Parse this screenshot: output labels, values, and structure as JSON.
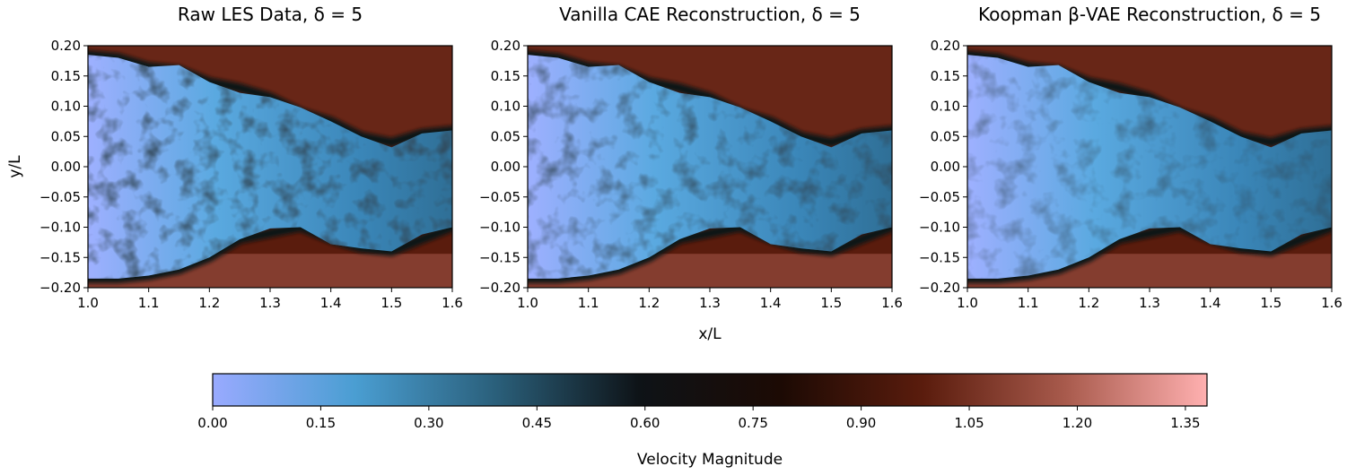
{
  "figure": {
    "xlabel": "x/L",
    "ylabel": "y/L",
    "colorbar_label": "Velocity Magnitude"
  },
  "colors": {
    "colormap": [
      "#99aaff",
      "#4a9ed2",
      "#2a5f7a",
      "#0e1317",
      "#1c0a04",
      "#5a1c0d",
      "#a85a4c",
      "#ffb0b0"
    ]
  },
  "chart_data": [
    {
      "type": "heatmap",
      "title": "Raw LES Data, δ = 5",
      "xlim": [
        1.0,
        1.6
      ],
      "ylim": [
        -0.2,
        0.2
      ],
      "xticks": [
        "1.0",
        "1.1",
        "1.2",
        "1.3",
        "1.4",
        "1.5",
        "1.6"
      ],
      "yticks": [
        "−0.20",
        "−0.15",
        "−0.10",
        "−0.05",
        "0.00",
        "0.05",
        "0.10",
        "0.15",
        "0.20"
      ],
      "field": "velocity magnitude (turbulent jet, low-velocity core ~0.1–0.5, surrounding flow ~0.9–1.2)"
    },
    {
      "type": "heatmap",
      "title": "Vanilla CAE Reconstruction, δ = 5",
      "xlim": [
        1.0,
        1.6
      ],
      "ylim": [
        -0.2,
        0.2
      ],
      "xticks": [
        "1.0",
        "1.1",
        "1.2",
        "1.3",
        "1.4",
        "1.5",
        "1.6"
      ],
      "yticks": [
        "−0.20",
        "−0.15",
        "−0.10",
        "−0.05",
        "0.00",
        "0.05",
        "0.10",
        "0.15",
        "0.20"
      ],
      "field": "velocity magnitude (smoothed reconstruction)"
    },
    {
      "type": "heatmap",
      "title": "Koopman β-VAE Reconstruction, δ = 5",
      "xlim": [
        1.0,
        1.6
      ],
      "ylim": [
        -0.2,
        0.2
      ],
      "xticks": [
        "1.0",
        "1.1",
        "1.2",
        "1.3",
        "1.4",
        "1.5",
        "1.6"
      ],
      "yticks": [
        "−0.20",
        "−0.15",
        "−0.10",
        "−0.05",
        "0.00",
        "0.05",
        "0.10",
        "0.15",
        "0.20"
      ],
      "field": "velocity magnitude (blurred reconstruction)"
    }
  ],
  "colorbar": {
    "range": [
      0.0,
      1.38
    ],
    "ticks": [
      "0.00",
      "0.15",
      "0.30",
      "0.45",
      "0.60",
      "0.75",
      "0.90",
      "1.05",
      "1.20",
      "1.35"
    ]
  }
}
